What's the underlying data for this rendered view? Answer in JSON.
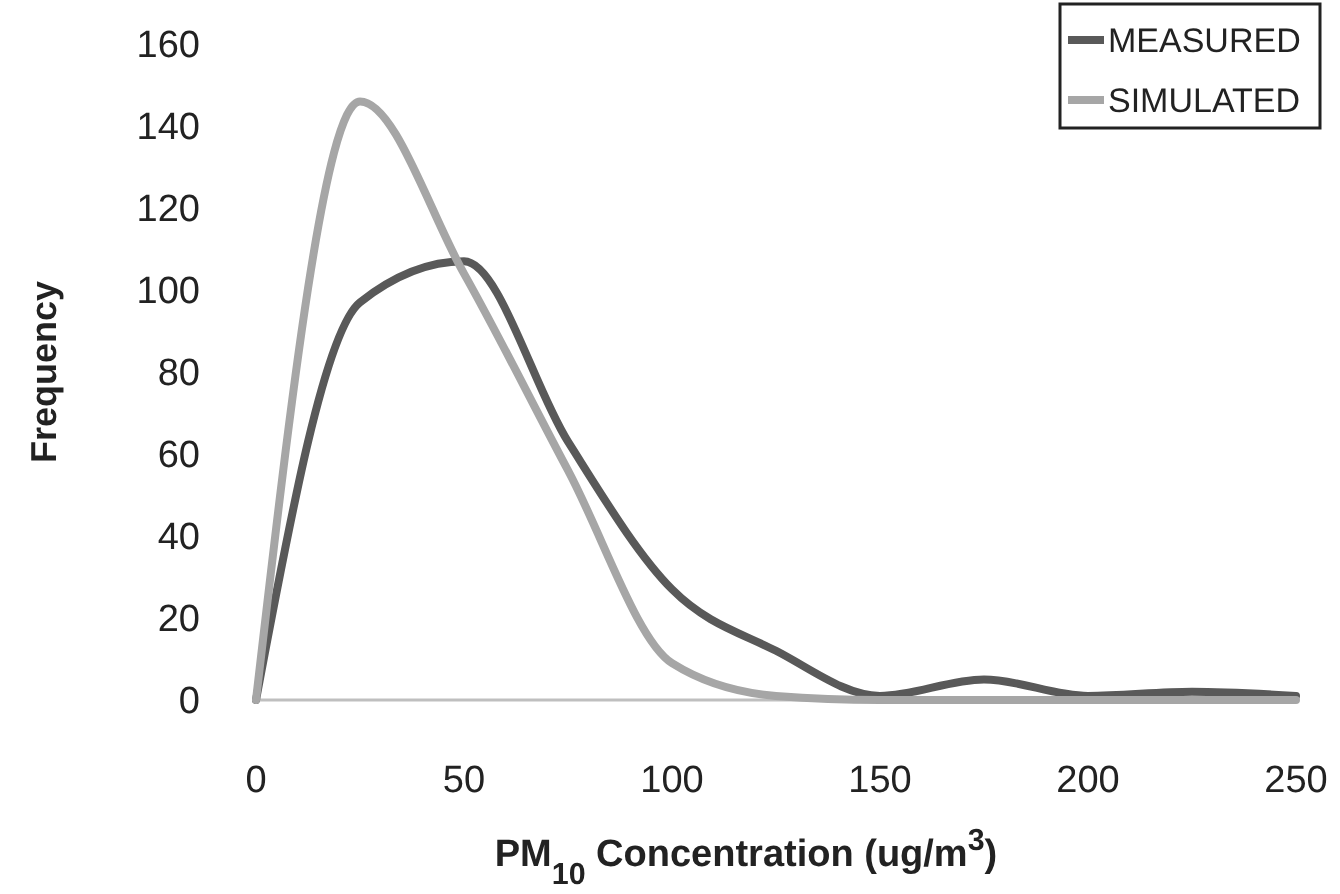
{
  "chart_data": {
    "type": "line",
    "xlabel": "PM$_{10}$ Concentration (ug/m$^{3}$)",
    "ylabel": "Frequency",
    "x": [
      0,
      25,
      50,
      75,
      100,
      125,
      150,
      175,
      200,
      225,
      250
    ],
    "series": [
      {
        "name": "MEASURED",
        "color": "#595959",
        "values": [
          0,
          97,
          107,
          63,
          27,
          12,
          1,
          5,
          1,
          2,
          1
        ]
      },
      {
        "name": "SIMULATED",
        "color": "#a6a6a6",
        "values": [
          0,
          146,
          104,
          56,
          9,
          1,
          0,
          0,
          0,
          0,
          0
        ]
      }
    ],
    "xlim": [
      0,
      250
    ],
    "xticks": [
      0,
      50,
      100,
      150,
      200,
      250
    ],
    "ylim": [
      0,
      160
    ],
    "yticks": [
      0,
      20,
      40,
      60,
      80,
      100,
      120,
      140,
      160
    ],
    "legend": "top right",
    "grid": false,
    "marker": "none",
    "line_style": "solid"
  }
}
